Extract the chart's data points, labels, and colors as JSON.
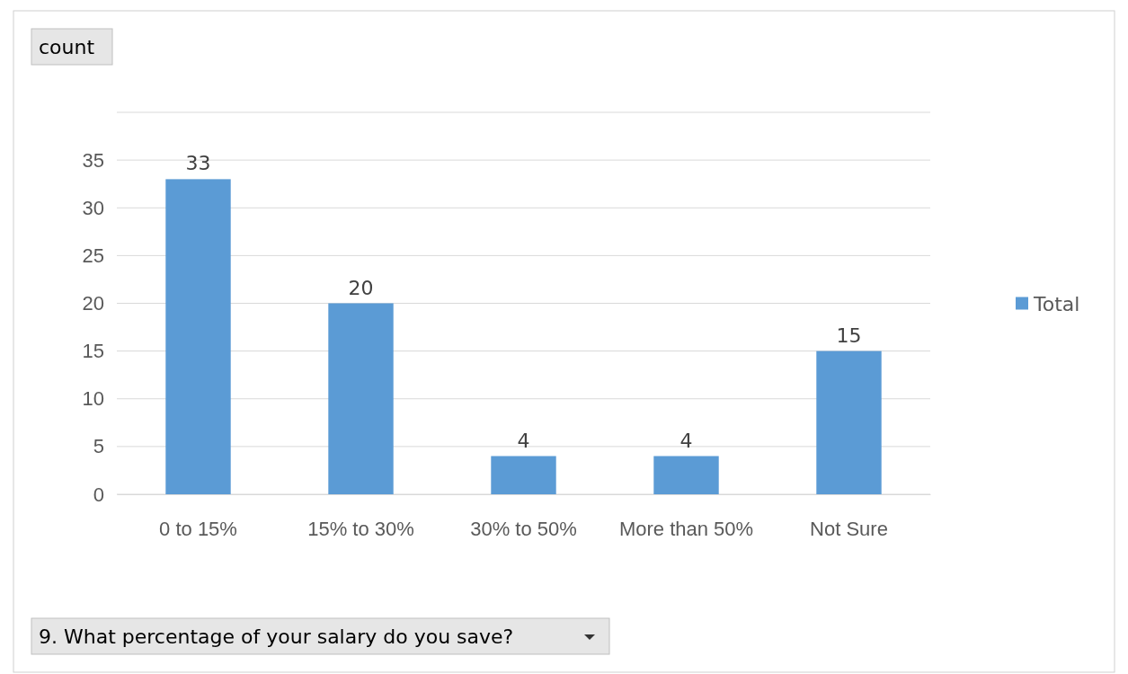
{
  "chart_data": {
    "type": "bar",
    "xlabel": "9. What percentage of your salary do you save?",
    "ylabel": "count",
    "categories": [
      "0 to 15%",
      "15% to 30%",
      "30% to 50%",
      "More than 50%",
      "Not Sure"
    ],
    "series": [
      {
        "name": "Total",
        "color": "#5b9bd5",
        "values": [
          33,
          20,
          4,
          4,
          15
        ]
      }
    ],
    "ylim": [
      0,
      40
    ],
    "yticks": [
      0,
      5,
      10,
      15,
      20,
      25,
      30,
      35
    ],
    "grid": "y",
    "legend": "right",
    "data_labels": true
  }
}
